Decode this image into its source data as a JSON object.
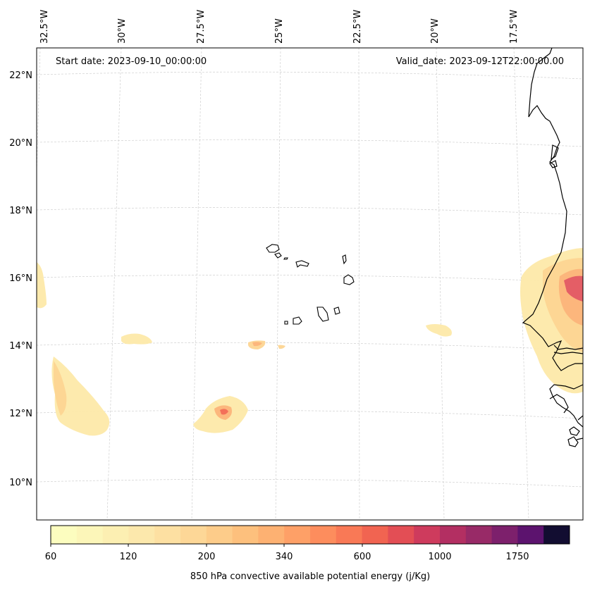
{
  "header": {
    "start_date": "Start date: 2023-09-10_00:00:00",
    "valid_date": "Valid_date: 2023-09-12T22:00:00.00"
  },
  "longitude_labels": [
    "32.5°W",
    "30°W",
    "27.5°W",
    "25°W",
    "22.5°W",
    "20°W",
    "17.5°W"
  ],
  "latitude_labels": [
    "22°N",
    "20°N",
    "18°N",
    "16°N",
    "14°N",
    "12°N",
    "10°N"
  ],
  "colorbar": {
    "label": "850 hPa convective available potential energy (j/Kg)",
    "tick_labels": [
      "60",
      "120",
      "200",
      "340",
      "600",
      "1000",
      "1750"
    ],
    "colors": [
      "#fcfdbf",
      "#fcf6b9",
      "#fcefb2",
      "#fce8ac",
      "#fde0a2",
      "#fdd797",
      "#fdcc8a",
      "#fdc07d",
      "#fdb172",
      "#fea067",
      "#fd8d5d",
      "#f97956",
      "#f16451",
      "#e34e55",
      "#ce3b5d",
      "#b32f62",
      "#982a67",
      "#7d206c",
      "#5c136e",
      "#120d31"
    ]
  },
  "overlays": {
    "palette": {
      "light": "#fde9a9",
      "mid": "#fdd592",
      "orange": "#fcb47a",
      "red": "#f26b57",
      "magenta": "#e35a65"
    }
  },
  "icons": {
    "coastline": "africa-coastline",
    "islands": "cape-verde-islands"
  }
}
